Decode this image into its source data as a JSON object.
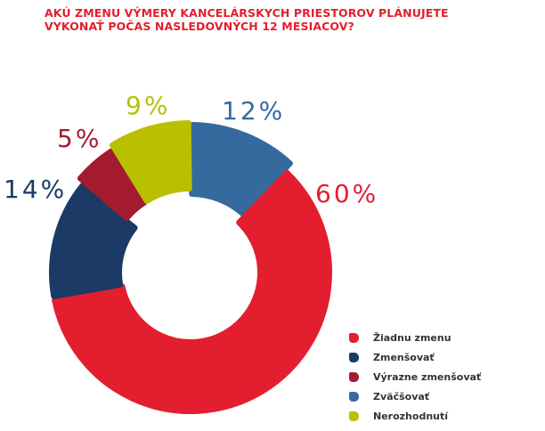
{
  "title": {
    "line1": "AKÚ ZMENU VÝMERY KANCELÁRSKYCH PRIESTOROV PLÁNUJETE",
    "line2": "VYKONAŤ POČAS NASLEDOVNÝCH 12 MESIACOV?"
  },
  "labels": {
    "zladnu": "60%",
    "zmensovat": "14%",
    "vyrazne": "5%",
    "zvacsovat": "12%",
    "nerozhodnuti": "9%"
  },
  "legend": {
    "items": [
      {
        "label": "Žiadnu zmenu",
        "color": "#e31e2f"
      },
      {
        "label": "Zmenšovať",
        "color": "#1b3a66"
      },
      {
        "label": "Výrazne zmenšovať",
        "color": "#a41b30"
      },
      {
        "label": "Zväčšovať",
        "color": "#356a9e"
      },
      {
        "label": "Nerozhodnutí",
        "color": "#b8c000"
      }
    ]
  },
  "chart_data": {
    "type": "pie",
    "subtype": "donut",
    "title": "AKÚ ZMENU VÝMERY KANCELÁRSKYCH PRIESTOROV PLÁNUJETE VYKONAŤ POČAS NASLEDOVNÝCH 12 MESIACOV?",
    "categories": [
      "Žiadnu zmenu",
      "Zmenšovať",
      "Výrazne zmenšovať",
      "Zväčšovať",
      "Nerozhodnutí"
    ],
    "values": [
      60,
      14,
      5,
      12,
      9
    ],
    "unit": "%",
    "colors": [
      "#e31e2f",
      "#1b3a66",
      "#a41b30",
      "#356a9e",
      "#b8c000"
    ],
    "legend_position": "bottom-right"
  }
}
